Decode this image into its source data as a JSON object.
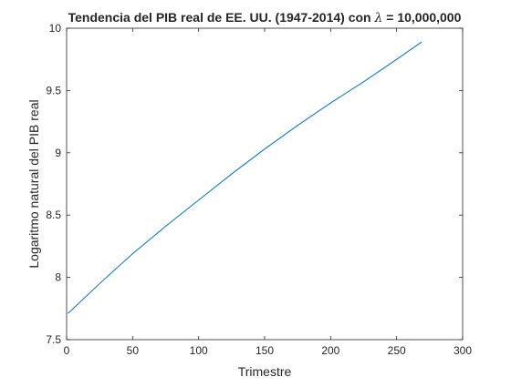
{
  "chart_data": {
    "type": "line",
    "title_text": "Tendencia del PIB real de EE. UU. (1947-2014) con ",
    "title_symbol": "λ",
    "title_value": " = 10,000,000",
    "xlabel": "Trimestre",
    "ylabel": "Logaritmo natural del PIB real",
    "xlim": [
      0,
      300
    ],
    "ylim": [
      7.5,
      10
    ],
    "xticks": [
      0,
      50,
      100,
      150,
      200,
      250,
      300
    ],
    "xtick_labels": [
      "0",
      "50",
      "100",
      "150",
      "200",
      "250",
      "300"
    ],
    "yticks": [
      7.5,
      8,
      8.5,
      9,
      9.5,
      10
    ],
    "ytick_labels": [
      "7.5",
      "8",
      "8.5",
      "9",
      "9.5",
      "10"
    ],
    "grid": false,
    "box": true,
    "series": [
      {
        "color": "#0072BD",
        "x": [
          1,
          25,
          50,
          75,
          100,
          125,
          150,
          175,
          200,
          225,
          250,
          269
        ],
        "y": [
          7.71,
          7.95,
          8.19,
          8.41,
          8.62,
          8.83,
          9.03,
          9.22,
          9.4,
          9.57,
          9.75,
          9.89
        ]
      }
    ]
  }
}
